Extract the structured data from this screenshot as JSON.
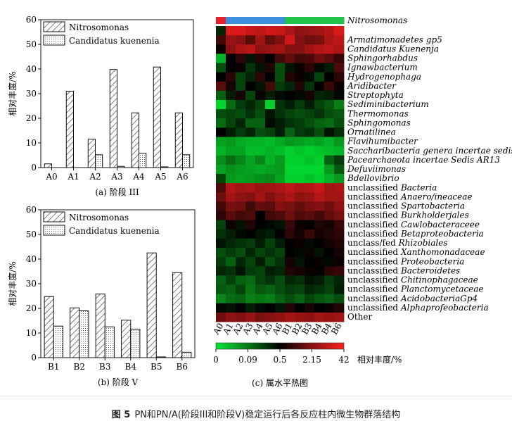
{
  "figure_caption": {
    "label": "图 5",
    "text": "PN和PN/A(阶段III和阶段V)稳定运行后各反应柱内微生物群落结构"
  },
  "chart_data": [
    {
      "type": "bar",
      "panel_label": "(a) 阶段 III",
      "categories": [
        "A0",
        "A1",
        "A2",
        "A3",
        "A4",
        "A5",
        "A6"
      ],
      "series": [
        {
          "name": "Nitrosomonas",
          "values": [
            1.5,
            31,
            11.5,
            39.8,
            22.2,
            40.8,
            22.2
          ]
        },
        {
          "name": "Candidatus kuenenia",
          "values": [
            0,
            0,
            5.2,
            0.5,
            5.8,
            0.3,
            5.2
          ]
        }
      ],
      "ylabel": "相对丰度/%",
      "ylim": [
        0,
        60
      ],
      "yticks": [
        0,
        10,
        20,
        30,
        40,
        50,
        60
      ],
      "legend_position": "top-left"
    },
    {
      "type": "bar",
      "panel_label": "(b) 阶段 V",
      "categories": [
        "B1",
        "B2",
        "B3",
        "B4",
        "B5",
        "B6"
      ],
      "series": [
        {
          "name": "Nitrosomonas",
          "values": [
            24.8,
            20.2,
            25.8,
            15.2,
            42.5,
            34.5
          ]
        },
        {
          "name": "Candidatus kuenenia",
          "values": [
            12.8,
            19.0,
            12.5,
            11.5,
            0.3,
            2.2
          ]
        }
      ],
      "ylabel": "相对丰度/%",
      "ylim": [
        0,
        60
      ],
      "yticks": [
        0,
        10,
        20,
        30,
        40,
        50,
        60
      ],
      "legend_position": "top-left"
    },
    {
      "type": "heatmap",
      "panel_label": "(c) 属水平热图",
      "columns": [
        "A0",
        "A1",
        "A2",
        "A3",
        "A4",
        "A5",
        "A6",
        "B1",
        "B2",
        "B3",
        "B4",
        "B4",
        "B6"
      ],
      "group_bar": [
        "#e8202a",
        "#3c8fdc",
        "#3c8fdc",
        "#3c8fdc",
        "#3c8fdc",
        "#3c8fdc",
        "#3c8fdc",
        "#22c24a",
        "#22c24a",
        "#22c24a",
        "#22c24a",
        "#22c24a",
        "#22c24a"
      ],
      "rows": [
        {
          "prefix": "",
          "name": "Nitrosomonas"
        },
        {
          "prefix": "",
          "name": "Armatimonadetes gp5"
        },
        {
          "prefix": "",
          "name": "Candidatus Kuenenja"
        },
        {
          "prefix": "",
          "name": "Sphingorhabdus"
        },
        {
          "prefix": "",
          "name": "Ignawbacterium"
        },
        {
          "prefix": "",
          "name": "Hydrogenophaga"
        },
        {
          "prefix": "",
          "name": "Aridibacter"
        },
        {
          "prefix": "",
          "name": "Streptophyta"
        },
        {
          "prefix": "",
          "name": "Sediminibacterium"
        },
        {
          "prefix": "",
          "name": "Thermomonas"
        },
        {
          "prefix": "",
          "name": "Sphingomonas"
        },
        {
          "prefix": "",
          "name": "Ornatilinea"
        },
        {
          "prefix": "",
          "name": "Flavihumibacter"
        },
        {
          "prefix": "",
          "name": "Saccharibacteria genera incertae sedis"
        },
        {
          "prefix": "",
          "name": "Pacearchaeota incertae Sedis AR13"
        },
        {
          "prefix": "",
          "name": "Defuviimonas"
        },
        {
          "prefix": "",
          "name": "Bdellovibrio"
        },
        {
          "prefix": "unclassified ",
          "name": "Bacteria"
        },
        {
          "prefix": "unclassified ",
          "name": "Anaero/ineaceae"
        },
        {
          "prefix": "unclassified ",
          "name": "Spartobacteria"
        },
        {
          "prefix": "unclassified ",
          "name": "Burkholderjales"
        },
        {
          "prefix": "unclassified ",
          "name": "Cawlobacteraceee"
        },
        {
          "prefix": "unclassified ",
          "name": "Betaproteobacteria"
        },
        {
          "prefix": "unclass/fed ",
          "name": "Rhizobiales"
        },
        {
          "prefix": "unclassified ",
          "name": "Xanthomonadaceae"
        },
        {
          "prefix": "unclassified ",
          "name": "Proteobacteria"
        },
        {
          "prefix": "unclassified ",
          "name": "Bacteroidetes"
        },
        {
          "prefix": "unclassified ",
          "name": "Chitinophagaceae"
        },
        {
          "prefix": "unclassified ",
          "name": "Planctomycetaceae"
        },
        {
          "prefix": "unclassified ",
          "name": "AcidobacteriaGp4"
        },
        {
          "prefix": "unclassified ",
          "name": "Alphaprofeobacteria"
        },
        {
          "prefix": "",
          "name": "Other"
        }
      ],
      "values": [
        [
          0.42,
          0.92,
          0.92,
          0.88,
          0.86,
          0.9,
          0.88,
          0.82,
          0.76,
          0.78,
          0.8,
          0.84,
          0.92
        ],
        [
          0.62,
          0.78,
          0.75,
          0.66,
          0.8,
          0.68,
          0.74,
          0.9,
          0.74,
          0.7,
          0.72,
          0.82,
          0.86
        ],
        [
          0.52,
          0.76,
          0.82,
          0.85,
          0.76,
          0.78,
          0.8,
          0.74,
          0.74,
          0.8,
          0.84,
          0.86,
          0.82
        ],
        [
          0.12,
          0.5,
          0.58,
          0.46,
          0.56,
          0.5,
          0.62,
          0.68,
          0.62,
          0.64,
          0.7,
          0.66,
          0.6
        ],
        [
          0.34,
          0.5,
          0.52,
          0.4,
          0.46,
          0.56,
          0.34,
          0.46,
          0.52,
          0.58,
          0.48,
          0.44,
          0.64
        ],
        [
          0.5,
          0.58,
          0.36,
          0.42,
          0.58,
          0.5,
          0.34,
          0.56,
          0.52,
          0.48,
          0.36,
          0.5,
          0.58
        ],
        [
          0.66,
          0.54,
          0.36,
          0.5,
          0.46,
          0.62,
          0.38,
          0.42,
          0.56,
          0.4,
          0.5,
          0.6,
          0.52
        ],
        [
          0.3,
          0.44,
          0.54,
          0.36,
          0.52,
          0.44,
          0.48,
          0.5,
          0.48,
          0.54,
          0.42,
          0.44,
          0.48
        ],
        [
          0.04,
          0.28,
          0.38,
          0.42,
          0.36,
          0.06,
          0.4,
          0.44,
          0.38,
          0.44,
          0.36,
          0.32,
          0.24
        ],
        [
          0.34,
          0.36,
          0.34,
          0.4,
          0.34,
          0.46,
          0.4,
          0.36,
          0.34,
          0.36,
          0.4,
          0.34,
          0.32
        ],
        [
          0.28,
          0.36,
          0.42,
          0.3,
          0.3,
          0.48,
          0.44,
          0.4,
          0.38,
          0.34,
          0.3,
          0.28,
          0.34
        ],
        [
          0.5,
          0.44,
          0.38,
          0.42,
          0.34,
          0.36,
          0.44,
          0.3,
          0.38,
          0.4,
          0.34,
          0.46,
          0.4
        ],
        [
          0.16,
          0.18,
          0.14,
          0.12,
          0.12,
          0.1,
          0.14,
          0.18,
          0.16,
          0.14,
          0.16,
          0.12,
          0.18
        ],
        [
          0.12,
          0.16,
          0.16,
          0.1,
          0.1,
          0.12,
          0.1,
          0.06,
          0.08,
          0.06,
          0.08,
          0.1,
          0.12
        ],
        [
          0.2,
          0.28,
          0.22,
          0.16,
          0.22,
          0.12,
          0.18,
          0.06,
          0.06,
          0.08,
          0.06,
          0.3,
          0.38
        ],
        [
          0.16,
          0.2,
          0.18,
          0.16,
          0.14,
          0.16,
          0.18,
          0.04,
          0.04,
          0.04,
          0.04,
          0.18,
          0.32
        ],
        [
          0.36,
          0.18,
          0.16,
          0.18,
          0.2,
          0.22,
          0.16,
          0.06,
          0.06,
          0.08,
          0.06,
          0.12,
          0.18
        ],
        [
          0.64,
          0.84,
          0.8,
          0.82,
          0.78,
          0.8,
          0.82,
          0.86,
          0.82,
          0.84,
          0.88,
          0.8,
          0.82
        ],
        [
          0.7,
          0.8,
          0.76,
          0.74,
          0.8,
          0.74,
          0.78,
          0.82,
          0.76,
          0.78,
          0.84,
          0.8,
          0.8
        ],
        [
          0.62,
          0.72,
          0.7,
          0.62,
          0.68,
          0.66,
          0.74,
          0.72,
          0.68,
          0.72,
          0.74,
          0.7,
          0.76
        ],
        [
          0.58,
          0.66,
          0.62,
          0.64,
          0.5,
          0.62,
          0.64,
          0.7,
          0.64,
          0.66,
          0.62,
          0.68,
          0.72
        ],
        [
          0.36,
          0.52,
          0.46,
          0.56,
          0.5,
          0.48,
          0.46,
          0.6,
          0.52,
          0.5,
          0.56,
          0.54,
          0.6
        ],
        [
          0.4,
          0.44,
          0.48,
          0.5,
          0.46,
          0.44,
          0.5,
          0.58,
          0.54,
          0.6,
          0.54,
          0.56,
          0.58
        ],
        [
          0.46,
          0.42,
          0.4,
          0.38,
          0.44,
          0.36,
          0.44,
          0.5,
          0.52,
          0.48,
          0.5,
          0.54,
          0.56
        ],
        [
          0.34,
          0.38,
          0.34,
          0.42,
          0.36,
          0.4,
          0.36,
          0.5,
          0.48,
          0.52,
          0.46,
          0.5,
          0.54
        ],
        [
          0.38,
          0.3,
          0.42,
          0.36,
          0.44,
          0.34,
          0.4,
          0.54,
          0.46,
          0.5,
          0.52,
          0.48,
          0.52
        ],
        [
          0.42,
          0.4,
          0.46,
          0.38,
          0.36,
          0.44,
          0.42,
          0.56,
          0.54,
          0.52,
          0.5,
          0.58,
          0.6
        ],
        [
          0.3,
          0.36,
          0.3,
          0.28,
          0.36,
          0.4,
          0.34,
          0.42,
          0.4,
          0.46,
          0.44,
          0.38,
          0.42
        ],
        [
          0.32,
          0.3,
          0.36,
          0.26,
          0.32,
          0.3,
          0.34,
          0.38,
          0.36,
          0.42,
          0.4,
          0.36,
          0.44
        ],
        [
          0.22,
          0.28,
          0.3,
          0.24,
          0.26,
          0.24,
          0.3,
          0.34,
          0.3,
          0.36,
          0.32,
          0.3,
          0.34
        ],
        [
          0.48,
          0.46,
          0.5,
          0.44,
          0.48,
          0.5,
          0.46,
          0.56,
          0.5,
          0.54,
          0.5,
          0.52,
          0.56
        ],
        [
          0.7,
          0.76,
          0.74,
          0.78,
          0.72,
          0.74,
          0.76,
          0.8,
          0.78,
          0.76,
          0.8,
          0.78,
          0.8
        ]
      ],
      "colorscale": {
        "stops": [
          "#00e834",
          "#087a14",
          "#000000",
          "#8a1212",
          "#ff1c1c"
        ],
        "tick_labels": [
          "0",
          "0.09",
          "0.5",
          "2.15",
          "42"
        ],
        "label": "相对丰度/%"
      }
    }
  ]
}
